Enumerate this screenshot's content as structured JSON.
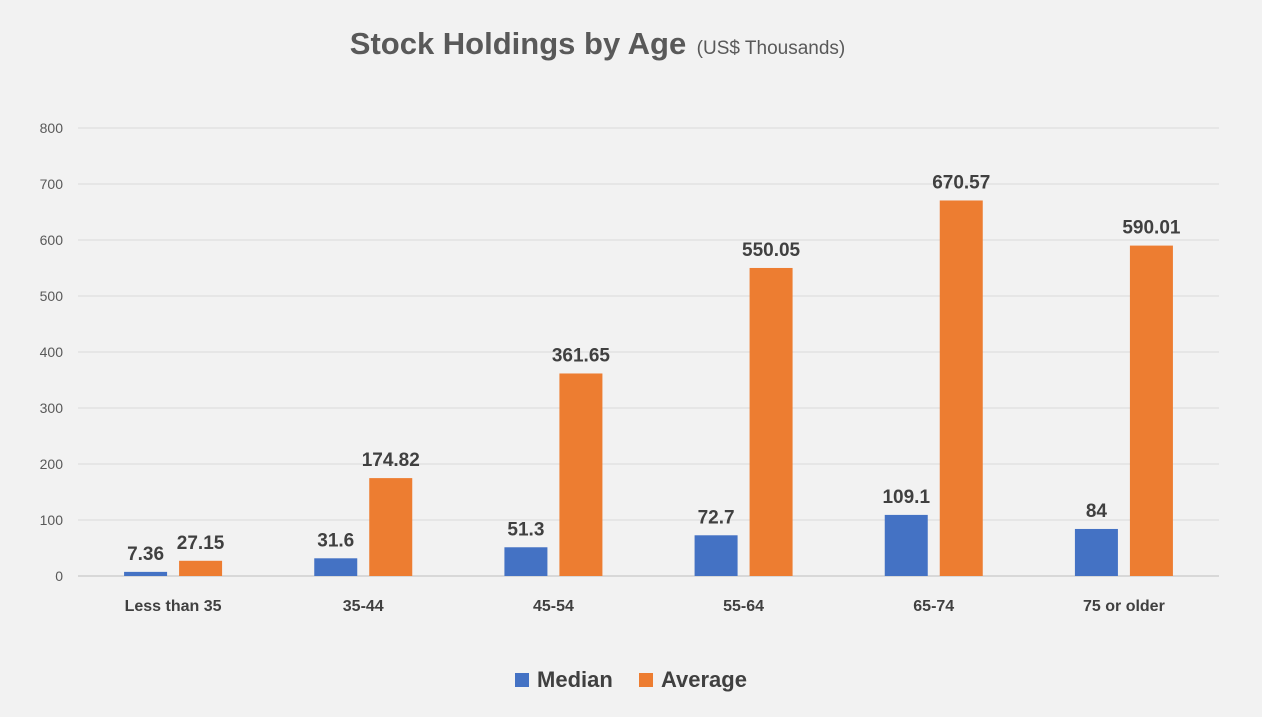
{
  "chart_data": {
    "type": "bar",
    "title": "Stock Holdings by Age",
    "subtitle": "(US$ Thousands)",
    "categories": [
      "Less than 35",
      "35-44",
      "45-54",
      "55-64",
      "65-74",
      "75 or older"
    ],
    "series": [
      {
        "name": "Median",
        "color": "#4472c4",
        "values": [
          7.36,
          31.6,
          51.3,
          72.7,
          109.1,
          84
        ]
      },
      {
        "name": "Average",
        "color": "#ed7d31",
        "values": [
          27.15,
          174.82,
          361.65,
          550.05,
          670.57,
          590.01
        ]
      }
    ],
    "data_labels": [
      [
        "7.36",
        "31.6",
        "51.3",
        "72.7",
        "109.1",
        "84"
      ],
      [
        "27.15",
        "174.82",
        "361.65",
        "550.05",
        "670.57",
        "590.01"
      ]
    ],
    "yticks": [
      0,
      100,
      200,
      300,
      400,
      500,
      600,
      700,
      800
    ],
    "ylim": [
      0,
      800
    ],
    "xlabel": "",
    "ylabel": "",
    "grid": true,
    "legend_position": "bottom"
  }
}
